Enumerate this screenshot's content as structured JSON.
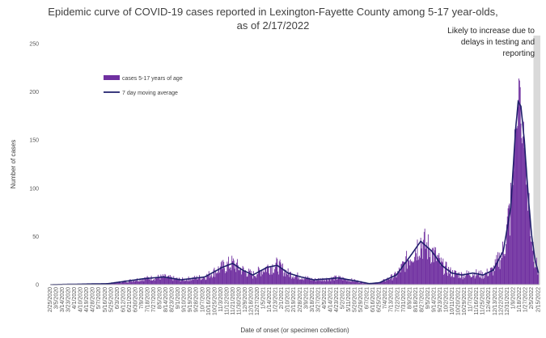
{
  "chart_data": {
    "type": "bar",
    "title_line1": "Epidemic curve of COVID-19 cases reported in Lexington-Fayette County among 5-17 year-olds,",
    "title_line2": "as of 2/17/2022",
    "xlabel": "Date of onset (or specimen collection)",
    "ylabel": "Number of cases",
    "ylim": [
      0,
      250
    ],
    "yticks": [
      0,
      50,
      100,
      150,
      200,
      250
    ],
    "x_start": "2/25/2020",
    "x_end": "2/15/2022",
    "x_tick_labels": [
      "2/25/2020",
      "3/5/2020",
      "3/14/2020",
      "3/23/2020",
      "4/1/2020",
      "4/10/2020",
      "4/19/2020",
      "4/28/2020",
      "5/7/2020",
      "5/16/2020",
      "5/25/2020",
      "6/3/2020",
      "6/12/2020",
      "6/21/2020",
      "6/30/2020",
      "7/9/2020",
      "7/18/2020",
      "7/27/2020",
      "8/5/2020",
      "8/14/2020",
      "8/23/2020",
      "9/1/2020",
      "9/10/2020",
      "9/19/2020",
      "9/28/2020",
      "10/7/2020",
      "10/16/2020",
      "10/25/2020",
      "11/3/2020",
      "11/12/2020",
      "11/21/2020",
      "11/30/2020",
      "12/9/2020",
      "12/18/2020",
      "12/27/2020",
      "1/5/2021",
      "1/14/2021",
      "1/23/2021",
      "2/1/2021",
      "2/10/2021",
      "2/19/2021",
      "2/28/2021",
      "3/9/2021",
      "3/18/2021",
      "3/27/2021",
      "4/5/2021",
      "4/14/2021",
      "4/23/2021",
      "5/2/2021",
      "5/11/2021",
      "5/20/2021",
      "5/29/2021",
      "6/7/2021",
      "6/16/2021",
      "6/25/2021",
      "7/4/2021",
      "7/13/2021",
      "7/22/2021",
      "7/31/2021",
      "8/9/2021",
      "8/18/2021",
      "8/27/2021",
      "9/5/2021",
      "9/14/2021",
      "9/23/2021",
      "10/2/2021",
      "10/11/2021",
      "10/20/2021",
      "10/29/2021",
      "11/7/2021",
      "11/16/2021",
      "11/25/2021",
      "12/4/2021",
      "12/13/2021",
      "12/22/2021",
      "12/31/2021",
      "1/9/2022",
      "1/18/2022",
      "1/27/2022",
      "2/5/2022",
      "2/15/2022"
    ],
    "series": [
      {
        "name": "cases 5-17 years of age",
        "kind": "bar",
        "color": "#7030a0"
      },
      {
        "name": "7 day moving average",
        "kind": "line",
        "color": "#1f1f6b"
      }
    ],
    "moving_average_keypoints": [
      [
        "2/25/2020",
        0
      ],
      [
        "5/20/2020",
        1
      ],
      [
        "6/10/2020",
        3
      ],
      [
        "7/10/2020",
        6
      ],
      [
        "8/10/2020",
        8
      ],
      [
        "9/5/2020",
        5
      ],
      [
        "10/10/2020",
        8
      ],
      [
        "11/5/2020",
        18
      ],
      [
        "11/20/2020",
        22
      ],
      [
        "12/5/2020",
        15
      ],
      [
        "12/20/2020",
        10
      ],
      [
        "1/10/2021",
        18
      ],
      [
        "1/25/2021",
        20
      ],
      [
        "2/10/2021",
        12
      ],
      [
        "3/1/2021",
        8
      ],
      [
        "3/20/2021",
        5
      ],
      [
        "4/10/2021",
        6
      ],
      [
        "4/25/2021",
        7
      ],
      [
        "5/20/2021",
        4
      ],
      [
        "6/10/2021",
        1
      ],
      [
        "6/25/2021",
        2
      ],
      [
        "7/20/2021",
        10
      ],
      [
        "8/10/2021",
        30
      ],
      [
        "8/25/2021",
        45
      ],
      [
        "9/10/2021",
        35
      ],
      [
        "9/25/2021",
        20
      ],
      [
        "10/10/2021",
        12
      ],
      [
        "10/25/2021",
        10
      ],
      [
        "11/10/2021",
        12
      ],
      [
        "11/25/2021",
        10
      ],
      [
        "12/10/2021",
        15
      ],
      [
        "12/25/2021",
        35
      ],
      [
        "1/5/2022",
        80
      ],
      [
        "1/12/2022",
        160
      ],
      [
        "1/16/2022",
        190
      ],
      [
        "1/20/2022",
        185
      ],
      [
        "1/25/2022",
        150
      ],
      [
        "1/31/2022",
        90
      ],
      [
        "2/5/2022",
        50
      ],
      [
        "2/10/2022",
        25
      ],
      [
        "2/15/2022",
        12
      ]
    ],
    "shaded_region": {
      "from": "2/8/2022",
      "to": "2/17/2022",
      "color": "#d9d9d9"
    },
    "annotation": [
      "Likely to increase due to",
      "delays in testing and",
      "reporting"
    ],
    "legend_position": "upper-left"
  }
}
